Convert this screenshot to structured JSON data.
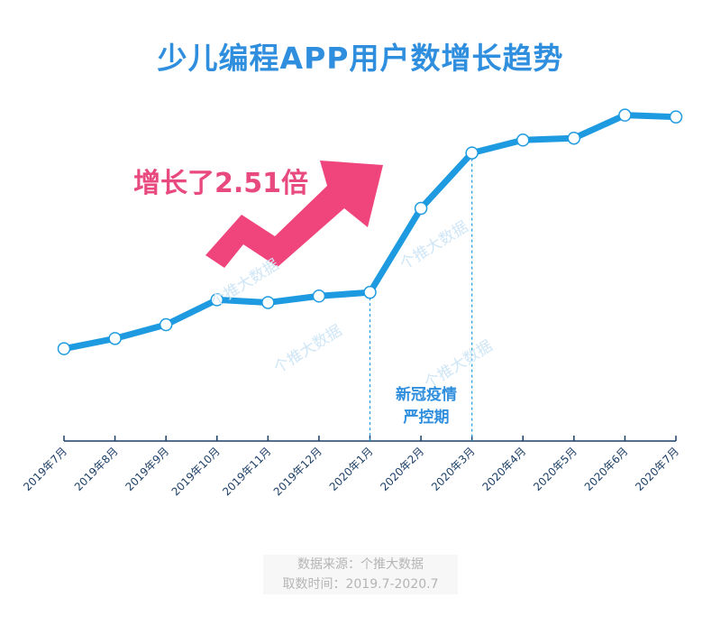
{
  "title": "少儿编程APP用户数增长趋势",
  "growth_label": "增长了2.51倍",
  "annotation": {
    "line1": "新冠疫情",
    "line2": "严控期"
  },
  "watermark": "个推大数据",
  "source": {
    "line1": "数据来源：个推大数据",
    "line2": "取数时间：2019.7-2020.7"
  },
  "colors": {
    "line": "#1e9be0",
    "title": "#2f8fde",
    "accent": "#e84a7f",
    "axis": "#1c3f66"
  },
  "chart_data": {
    "type": "line",
    "title": "少儿编程APP用户数增长趋势",
    "categories": [
      "2019年7月",
      "2019年8月",
      "2019年9月",
      "2019年10月",
      "2019年11月",
      "2019年12月",
      "2020年1月",
      "2020年2月",
      "2020年3月",
      "2020年4月",
      "2020年5月",
      "2020年6月",
      "2020年7月"
    ],
    "series": [
      {
        "values": [
          1.0,
          1.11,
          1.26,
          1.53,
          1.5,
          1.57,
          1.61,
          2.52,
          3.12,
          3.26,
          3.28,
          3.53,
          3.51
        ]
      }
    ],
    "ylim": [
      0,
      3.8
    ],
    "y_axis_shown": false,
    "highlight_period": [
      "2020年1月",
      "2020年3月"
    ],
    "annotation": "新冠疫情严控期"
  }
}
